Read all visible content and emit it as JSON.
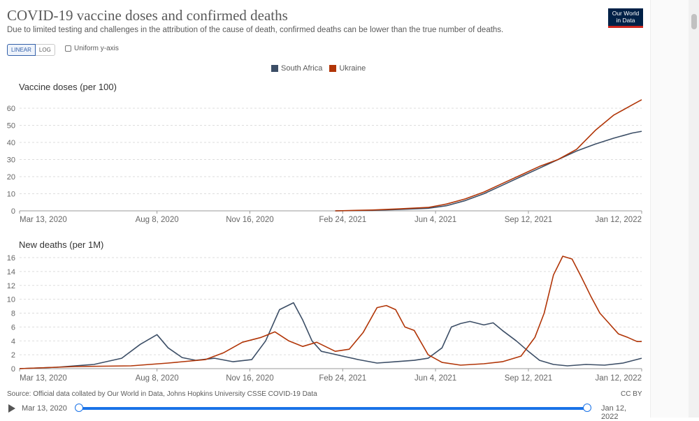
{
  "header": {
    "title": "COVID-19 vaccine doses and confirmed deaths",
    "subtitle": "Due to limited testing and challenges in the attribution of the cause of death, confirmed deaths can be lower than the true number of deaths.",
    "logo_line1": "Our World",
    "logo_line2": "in Data"
  },
  "controls": {
    "linear_label": "LINEAR",
    "log_label": "LOG",
    "uniform_label": "Uniform y-axis"
  },
  "legend": [
    {
      "name": "South Africa",
      "color": "#3c4e66"
    },
    {
      "name": "Ukraine",
      "color": "#b13507"
    }
  ],
  "footer": {
    "source": "Source: Official data collated by Our World in Data, Johns Hopkins University CSSE COVID-19 Data",
    "license": "CC BY",
    "timeline_start": "Mar 13, 2020",
    "timeline_end": "Jan 12, 2022"
  },
  "chart_data": [
    {
      "type": "line",
      "title": "Vaccine doses (per 100)",
      "x_range": [
        0,
        670
      ],
      "ylim": [
        0,
        65
      ],
      "yticks": [
        0,
        10,
        20,
        30,
        40,
        50,
        60
      ],
      "xtick_labels": [
        {
          "label": "Mar 13, 2020",
          "day": 0
        },
        {
          "label": "Aug 8, 2020",
          "day": 148
        },
        {
          "label": "Nov 16, 2020",
          "day": 248
        },
        {
          "label": "Feb 24, 2021",
          "day": 348
        },
        {
          "label": "Jun 4, 2021",
          "day": 448
        },
        {
          "label": "Sep 12, 2021",
          "day": 548
        },
        {
          "label": "Jan 12, 2022",
          "day": 670
        }
      ],
      "series": [
        {
          "name": "South Africa",
          "color": "#3c4e66",
          "x": [
            340,
            380,
            410,
            440,
            460,
            480,
            500,
            520,
            540,
            560,
            580,
            600,
            620,
            640,
            660,
            670
          ],
          "y": [
            0,
            0.3,
            0.8,
            1.5,
            3,
            6,
            10,
            15,
            20,
            25,
            30,
            35,
            39,
            42.5,
            45.5,
            46.5
          ]
        },
        {
          "name": "Ukraine",
          "color": "#b13507",
          "x": [
            340,
            380,
            410,
            440,
            460,
            480,
            500,
            520,
            540,
            560,
            580,
            600,
            620,
            640,
            660,
            670
          ],
          "y": [
            0,
            0.5,
            1.2,
            2,
            4,
            7,
            11,
            16,
            21,
            26,
            30,
            36,
            47,
            56,
            62,
            65
          ]
        }
      ]
    },
    {
      "type": "line",
      "title": "New deaths (per 1M)",
      "x_range": [
        0,
        670
      ],
      "ylim": [
        0,
        16
      ],
      "yticks": [
        0,
        2,
        4,
        6,
        8,
        10,
        12,
        14,
        16
      ],
      "xtick_labels": [
        {
          "label": "Mar 13, 2020",
          "day": 0
        },
        {
          "label": "Aug 8, 2020",
          "day": 148
        },
        {
          "label": "Nov 16, 2020",
          "day": 248
        },
        {
          "label": "Feb 24, 2021",
          "day": 348
        },
        {
          "label": "Jun 4, 2021",
          "day": 448
        },
        {
          "label": "Sep 12, 2021",
          "day": 548
        },
        {
          "label": "Jan 12, 2022",
          "day": 670
        }
      ],
      "series": [
        {
          "name": "South Africa",
          "color": "#3c4e66",
          "x": [
            0,
            40,
            80,
            110,
            130,
            148,
            160,
            175,
            190,
            210,
            230,
            250,
            265,
            280,
            295,
            305,
            315,
            325,
            335,
            348,
            365,
            385,
            405,
            425,
            440,
            455,
            465,
            475,
            485,
            500,
            510,
            520,
            535,
            548,
            560,
            575,
            590,
            610,
            630,
            650,
            670
          ],
          "y": [
            0,
            0.2,
            0.6,
            1.5,
            3.5,
            4.9,
            3,
            1.6,
            1.2,
            1.5,
            1.0,
            1.3,
            4,
            8.5,
            9.5,
            7,
            4,
            2.5,
            2.2,
            1.8,
            1.3,
            0.8,
            1.0,
            1.2,
            1.5,
            3.0,
            6.0,
            6.5,
            6.8,
            6.3,
            6.6,
            5.5,
            4.0,
            2.5,
            1.2,
            0.6,
            0.4,
            0.6,
            0.5,
            0.8,
            1.5
          ]
        },
        {
          "name": "Ukraine",
          "color": "#b13507",
          "x": [
            0,
            60,
            120,
            160,
            200,
            220,
            240,
            260,
            275,
            290,
            305,
            320,
            340,
            355,
            370,
            385,
            395,
            405,
            415,
            425,
            440,
            455,
            475,
            500,
            520,
            540,
            555,
            565,
            575,
            585,
            595,
            605,
            615,
            625,
            635,
            645,
            655,
            665,
            670
          ],
          "y": [
            0,
            0.3,
            0.4,
            0.8,
            1.3,
            2.3,
            3.8,
            4.5,
            5.3,
            4.0,
            3.2,
            3.8,
            2.5,
            2.8,
            5.2,
            8.8,
            9.1,
            8.5,
            6.0,
            5.5,
            2.0,
            0.9,
            0.5,
            0.7,
            1.0,
            1.8,
            4.5,
            8.0,
            13.5,
            16.2,
            15.8,
            13.2,
            10.5,
            8.0,
            6.5,
            5.0,
            4.5,
            3.9,
            3.9
          ]
        }
      ]
    }
  ]
}
